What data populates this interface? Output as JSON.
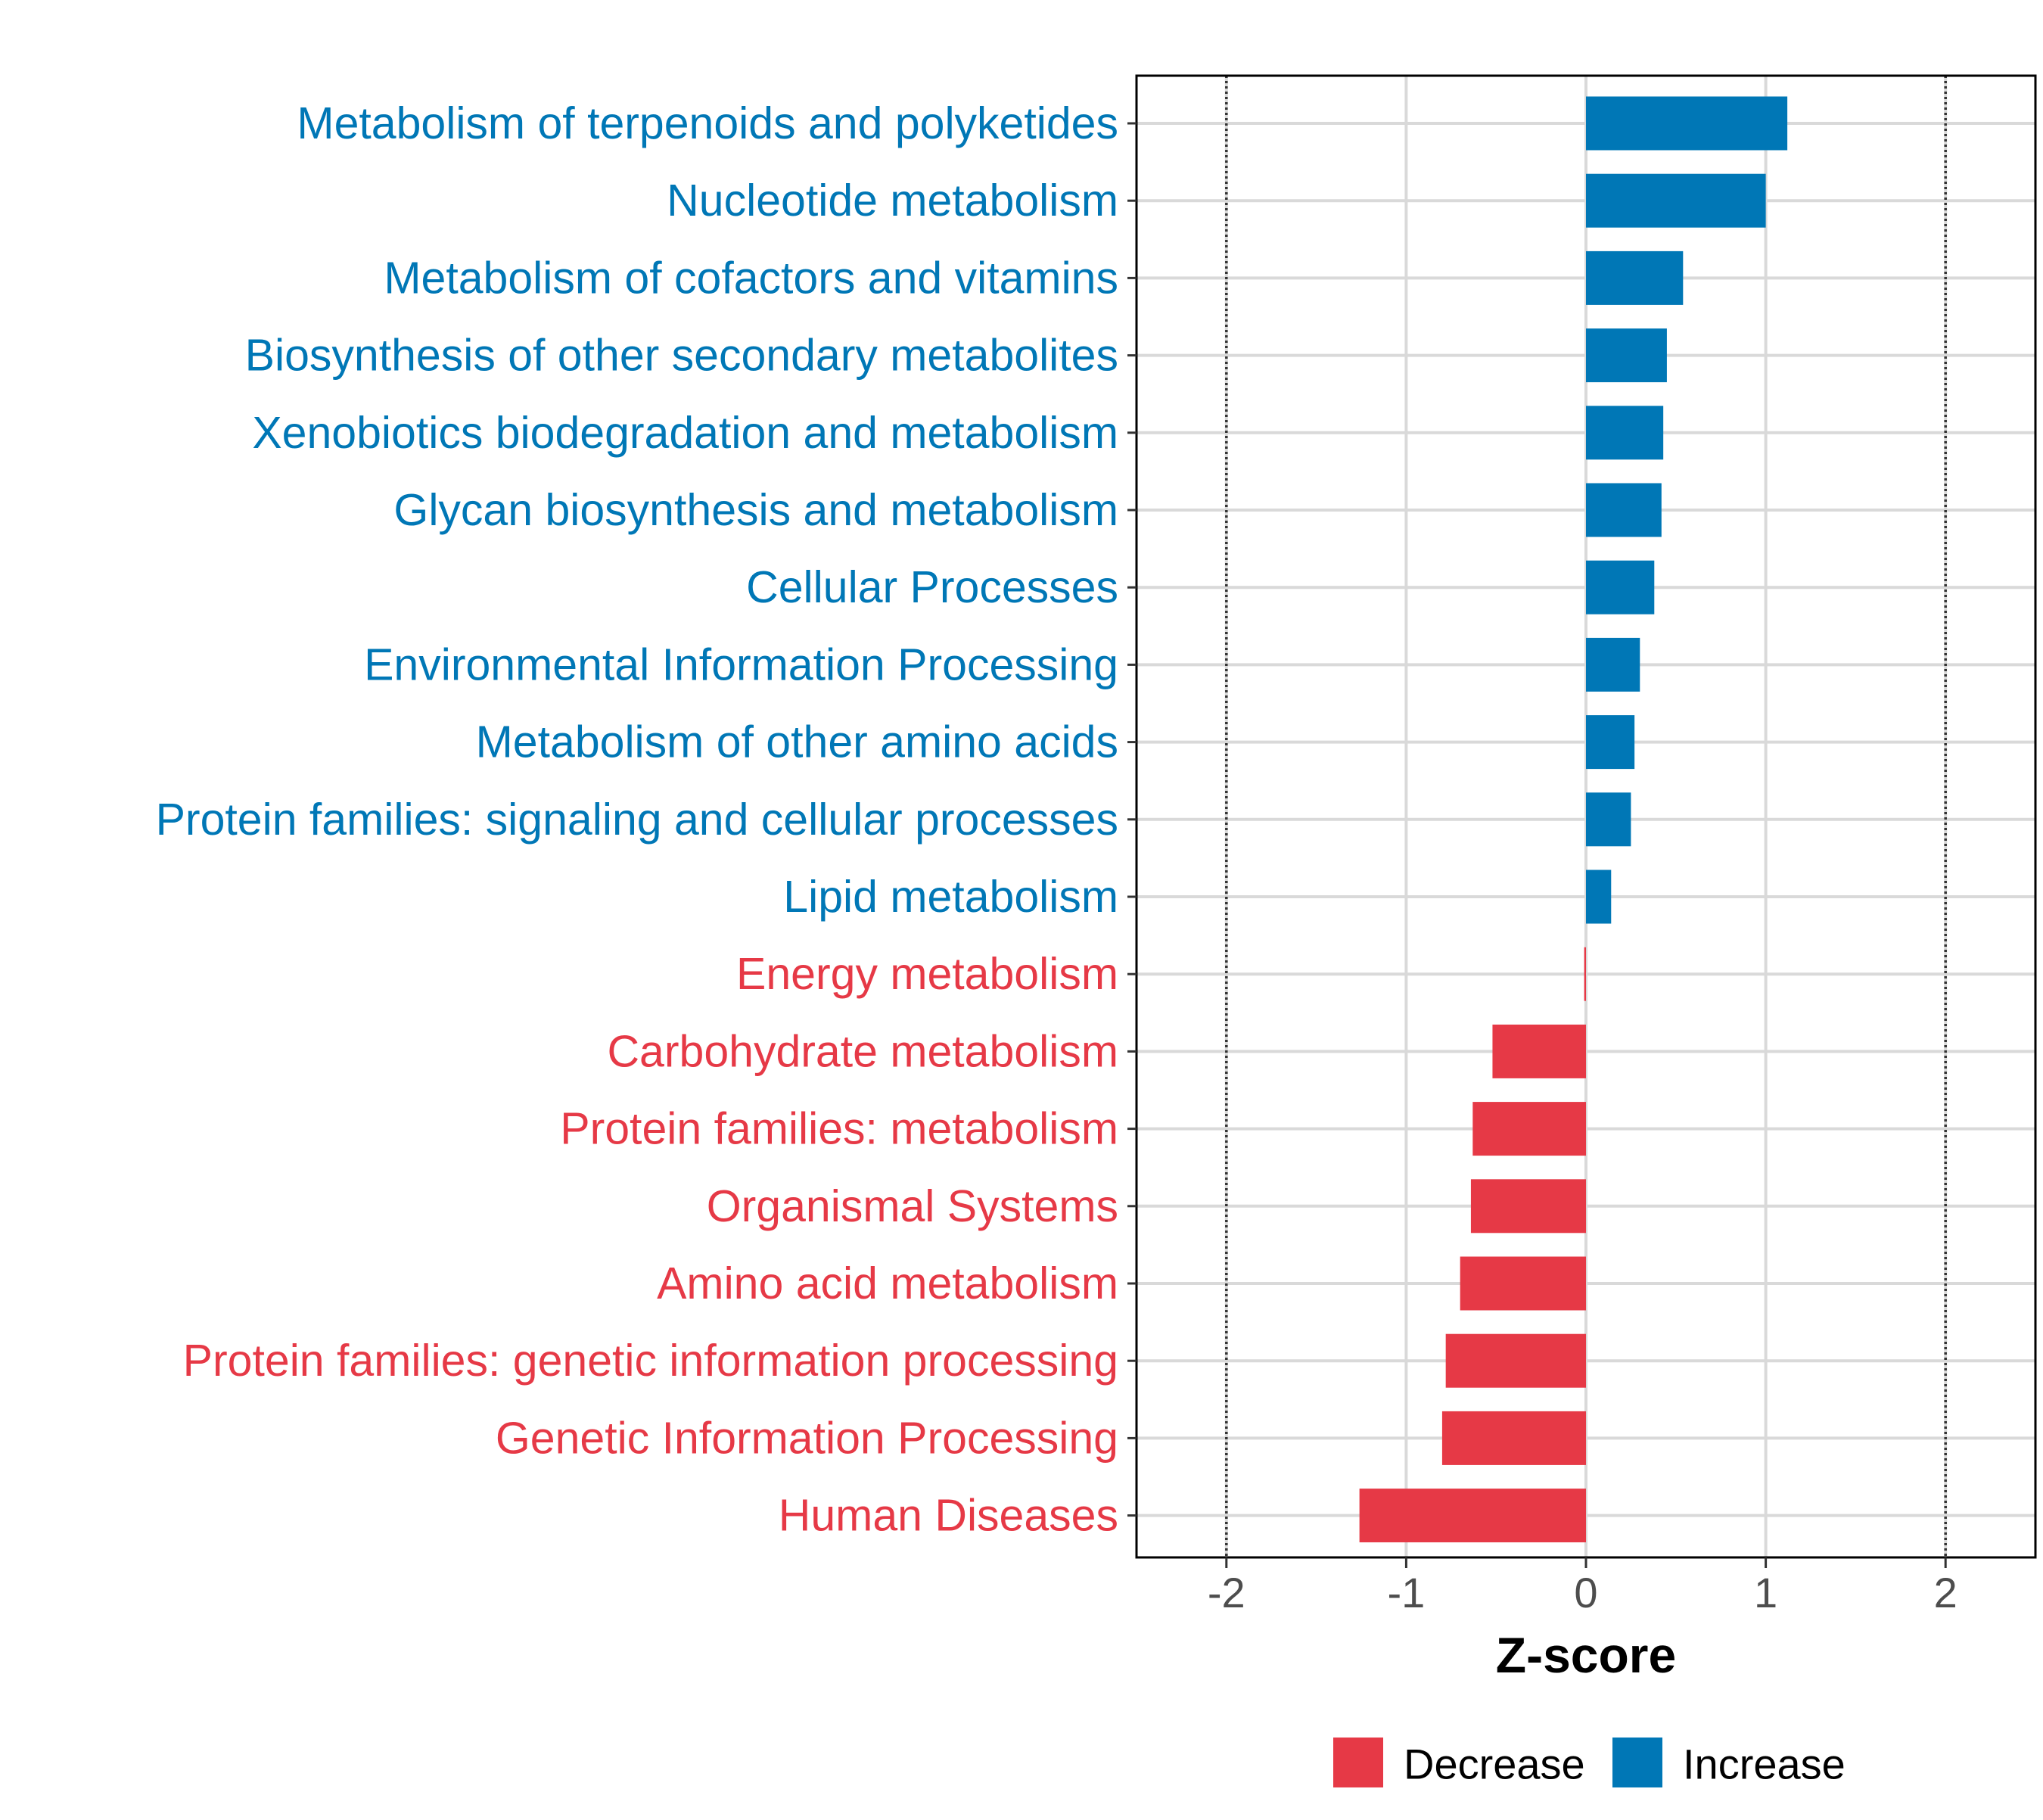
{
  "chart_data": {
    "type": "bar",
    "orientation": "horizontal",
    "title": "",
    "xlabel": "Z-score",
    "ylabel": "",
    "xlim": [
      -2.5,
      2.5
    ],
    "x_ticks": [
      -2,
      -1,
      0,
      1,
      2
    ],
    "x_tick_labels": [
      "-2",
      "-1",
      "0",
      "1",
      "2"
    ],
    "threshold_lines": [
      -2,
      2
    ],
    "grid": true,
    "legend_position": "bottom",
    "legend": [
      {
        "name": "Decrease",
        "color": "#E63946"
      },
      {
        "name": "Increase",
        "color": "#0077B6"
      }
    ],
    "categories": [
      "Metabolism of terpenoids and polyketides",
      "Nucleotide metabolism",
      "Metabolism of cofactors and vitamins",
      "Biosynthesis of other secondary metabolites",
      "Xenobiotics biodegradation and metabolism",
      "Glycan biosynthesis and metabolism",
      "Cellular Processes",
      "Environmental Information Processing",
      "Metabolism of other amino acids",
      "Protein families: signaling and cellular processes",
      "Lipid metabolism",
      "Energy metabolism",
      "Carbohydrate metabolism",
      "Protein families: metabolism",
      "Organismal Systems",
      "Amino acid metabolism",
      "Protein families: genetic information processing",
      "Genetic Information Processing",
      "Human Diseases"
    ],
    "values": [
      1.12,
      1.0,
      0.54,
      0.45,
      0.43,
      0.42,
      0.38,
      0.3,
      0.27,
      0.25,
      0.14,
      -0.01,
      -0.52,
      -0.63,
      -0.64,
      -0.7,
      -0.78,
      -0.8,
      -1.26
    ],
    "groups": [
      "Increase",
      "Increase",
      "Increase",
      "Increase",
      "Increase",
      "Increase",
      "Increase",
      "Increase",
      "Increase",
      "Increase",
      "Increase",
      "Decrease",
      "Decrease",
      "Decrease",
      "Decrease",
      "Decrease",
      "Decrease",
      "Decrease",
      "Decrease"
    ]
  }
}
